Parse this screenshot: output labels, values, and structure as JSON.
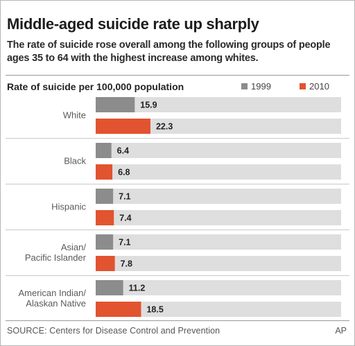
{
  "header": {
    "title": "Middle-aged suicide rate up sharply",
    "subtitle": "The rate of suicide rose overall among the following groups of people ages 35 to 64 with the highest increase among whites."
  },
  "footer": {
    "source": "SOURCE: Centers for Disease Control and Prevention",
    "credit": "AP"
  },
  "chart_data": {
    "type": "bar",
    "orientation": "horizontal",
    "title": "Middle-aged suicide rate up sharply",
    "subtitle": "The rate of suicide rose overall among the following groups of people ages 35 to 64 with the highest increase among whites.",
    "value_axis_label": "Rate of suicide per 100,000 population",
    "categories": [
      [
        "White"
      ],
      [
        "Black"
      ],
      [
        "Hispanic"
      ],
      [
        "Asian/",
        "Pacific Islander"
      ],
      [
        "American Indian/",
        "Alaskan Native"
      ]
    ],
    "series": [
      {
        "name": "1999",
        "color": "#8c8c8c",
        "values": [
          15.9,
          6.4,
          7.1,
          7.1,
          11.2
        ]
      },
      {
        "name": "2010",
        "color": "#e2532f",
        "values": [
          22.3,
          6.8,
          7.4,
          7.8,
          18.5
        ]
      }
    ],
    "track_color": "#dedede",
    "xlim": [
      0,
      100
    ],
    "legend_position": "top-right",
    "grid": false
  }
}
